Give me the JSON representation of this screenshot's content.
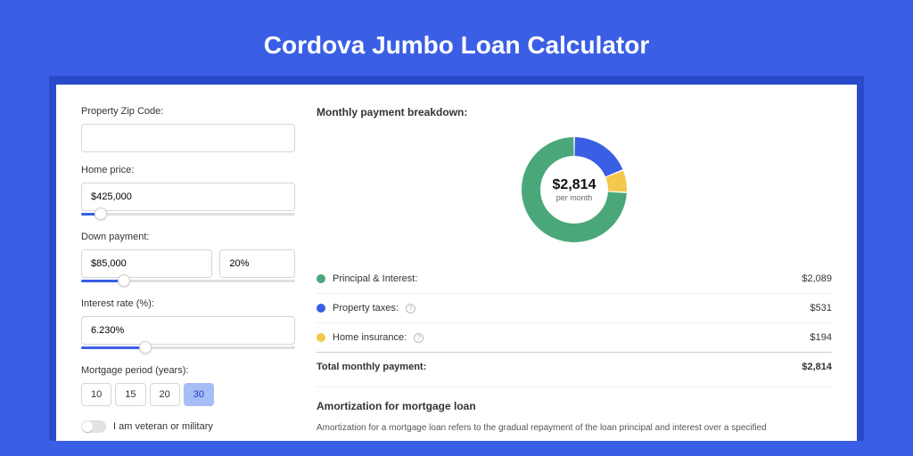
{
  "page_title": "Cordova Jumbo Loan Calculator",
  "colors": {
    "page_bg": "#3a5fe5",
    "shadow_box_bg": "#2a4bc9",
    "panel_bg": "#ffffff",
    "accent": "#3a5fe5",
    "pi": "#4aa77a",
    "tax": "#3a5fe5",
    "ins": "#f2c94c"
  },
  "form": {
    "zip": {
      "label": "Property Zip Code:",
      "value": ""
    },
    "home_price": {
      "label": "Home price:",
      "value": "$425,000",
      "slider_pct": 9
    },
    "down_payment": {
      "label": "Down payment:",
      "value": "$85,000",
      "pct": "20%",
      "slider_pct": 20
    },
    "interest_rate": {
      "label": "Interest rate (%):",
      "value": "6.230%",
      "slider_pct": 30
    },
    "period": {
      "label": "Mortgage period (years):",
      "options": [
        {
          "label": "10",
          "active": false
        },
        {
          "label": "15",
          "active": false
        },
        {
          "label": "20",
          "active": false
        },
        {
          "label": "30",
          "active": true
        }
      ]
    },
    "veteran": {
      "label": "I am veteran or military",
      "on": false
    }
  },
  "breakdown": {
    "title": "Monthly payment breakdown:",
    "center_amount": "$2,814",
    "center_sub": "per month",
    "donut": {
      "segments": [
        {
          "key": "tax",
          "color": "#3a5fe5",
          "start_deg": -90,
          "sweep_deg": 68
        },
        {
          "key": "ins",
          "color": "#f2c94c",
          "start_deg": -22,
          "sweep_deg": 25
        },
        {
          "key": "pi",
          "color": "#4aa77a",
          "start_deg": 3,
          "sweep_deg": 267
        }
      ],
      "outer_r": 59,
      "inner_r": 38,
      "gap_deg": 1.5
    },
    "rows": [
      {
        "color": "#4aa77a",
        "label": "Principal & Interest:",
        "help": false,
        "value": "$2,089"
      },
      {
        "color": "#3a5fe5",
        "label": "Property taxes:",
        "help": true,
        "value": "$531"
      },
      {
        "color": "#f2c94c",
        "label": "Home insurance:",
        "help": true,
        "value": "$194"
      }
    ],
    "total_label": "Total monthly payment:",
    "total_value": "$2,814"
  },
  "amortization": {
    "title": "Amortization for mortgage loan",
    "text": "Amortization for a mortgage loan refers to the gradual repayment of the loan principal and interest over a specified"
  }
}
